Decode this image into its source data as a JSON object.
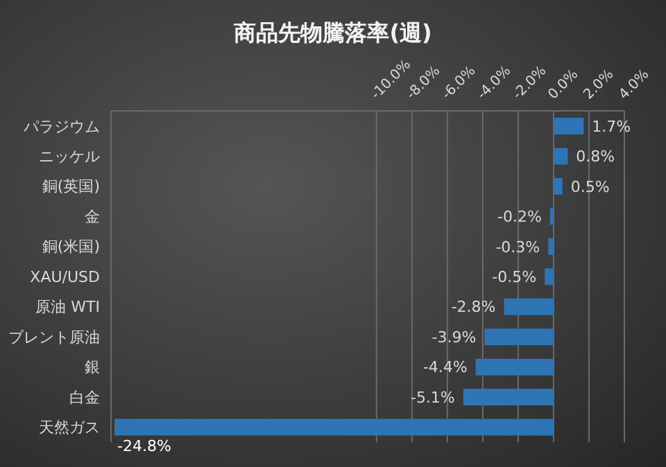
{
  "chart_data": {
    "type": "bar",
    "orientation": "horizontal",
    "title": "商品先物騰落率(週)",
    "categories": [
      "パラジウム",
      "ニッケル",
      "銅(英国)",
      "金",
      "銅(米国)",
      "XAU/USD",
      "原油 WTI",
      "ブレント原油",
      "銀",
      "白金",
      "天然ガス"
    ],
    "values": [
      1.7,
      0.8,
      0.5,
      -0.2,
      -0.3,
      -0.5,
      -2.8,
      -3.9,
      -4.4,
      -5.1,
      -24.8
    ],
    "value_labels": [
      "1.7%",
      "0.8%",
      "0.5%",
      "-0.2%",
      "-0.3%",
      "-0.5%",
      "-2.8%",
      "-3.9%",
      "-4.4%",
      "-5.1%",
      "-24.8%"
    ],
    "color": "#2e75b6",
    "xlim": [
      -25,
      4
    ],
    "xticks": [
      {
        "value": -10,
        "label": "-10.0%"
      },
      {
        "value": -8,
        "label": "-8.0%"
      },
      {
        "value": -6,
        "label": "-6.0%"
      },
      {
        "value": -4,
        "label": "-4.0%"
      },
      {
        "value": -2,
        "label": "-2.0%"
      },
      {
        "value": 0,
        "label": "0.0%"
      },
      {
        "value": 2,
        "label": "2.0%"
      },
      {
        "value": 4,
        "label": "4.0%"
      }
    ],
    "grid": "x"
  }
}
